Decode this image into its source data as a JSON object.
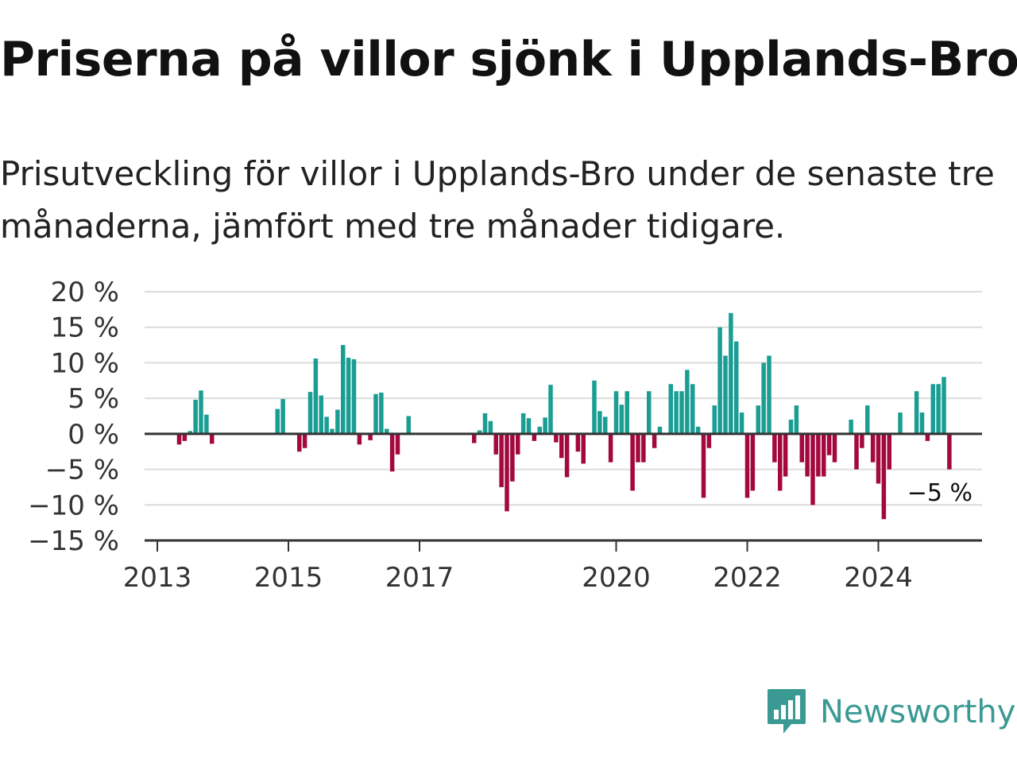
{
  "title": "Priserna på villor sjönk i Upplands-Bro",
  "subtitle": "Prisutveckling för villor i Upplands-Bro under de senaste tre månaderna, jämfört med tre månader tidigare.",
  "brand": {
    "name": "Newsworthy",
    "icon": "newsworthy-logo-icon",
    "color": "#3a9a93"
  },
  "chart_data": {
    "type": "bar",
    "y_ticks": [
      "20 %",
      "15 %",
      "10 %",
      "5 %",
      "0 %",
      "−5 %",
      "−10 %",
      "−15 %"
    ],
    "y_tick_values": [
      20,
      15,
      10,
      5,
      0,
      -5,
      -10,
      -15
    ],
    "ylim": [
      -15,
      20
    ],
    "x_ticks": [
      "2013",
      "2015",
      "2017",
      "2020",
      "2022",
      "2024"
    ],
    "x_tick_years": [
      2013,
      2015,
      2017,
      2020,
      2022,
      2024
    ],
    "grid": "horizontal",
    "colors": {
      "positive": "#1a9e94",
      "negative": "#a3093f",
      "grid": "#dcdcdc",
      "zero_line": "#333333"
    },
    "end_label": "−5 %",
    "series": [
      {
        "date": "2013-05",
        "value": -1.5
      },
      {
        "date": "2013-06",
        "value": -1
      },
      {
        "date": "2013-07",
        "value": 0.4
      },
      {
        "date": "2013-08",
        "value": 4.8
      },
      {
        "date": "2013-09",
        "value": 6.1
      },
      {
        "date": "2013-10",
        "value": 2.7
      },
      {
        "date": "2013-11",
        "value": -1.4
      },
      {
        "date": "2014-11",
        "value": 3.5
      },
      {
        "date": "2014-12",
        "value": 4.9
      },
      {
        "date": "2015-03",
        "value": -2.5
      },
      {
        "date": "2015-04",
        "value": -2
      },
      {
        "date": "2015-05",
        "value": 5.9
      },
      {
        "date": "2015-06",
        "value": 10.6
      },
      {
        "date": "2015-07",
        "value": 5.4
      },
      {
        "date": "2015-08",
        "value": 2.4
      },
      {
        "date": "2015-09",
        "value": 0.7
      },
      {
        "date": "2015-10",
        "value": 3.4
      },
      {
        "date": "2015-11",
        "value": 12.5
      },
      {
        "date": "2015-12",
        "value": 10.7
      },
      {
        "date": "2016-01",
        "value": 10.5
      },
      {
        "date": "2016-02",
        "value": -1.5
      },
      {
        "date": "2016-04",
        "value": -0.9
      },
      {
        "date": "2016-05",
        "value": 5.6
      },
      {
        "date": "2016-06",
        "value": 5.8
      },
      {
        "date": "2016-07",
        "value": 0.7
      },
      {
        "date": "2016-08",
        "value": -5.3
      },
      {
        "date": "2016-09",
        "value": -2.9
      },
      {
        "date": "2016-11",
        "value": 2.5
      },
      {
        "date": "2017-11",
        "value": -1.3
      },
      {
        "date": "2017-12",
        "value": 0.5
      },
      {
        "date": "2018-01",
        "value": 2.9
      },
      {
        "date": "2018-02",
        "value": 1.8
      },
      {
        "date": "2018-03",
        "value": -2.9
      },
      {
        "date": "2018-04",
        "value": -7.5
      },
      {
        "date": "2018-05",
        "value": -10.9
      },
      {
        "date": "2018-06",
        "value": -6.7
      },
      {
        "date": "2018-07",
        "value": -2.9
      },
      {
        "date": "2018-08",
        "value": 2.9
      },
      {
        "date": "2018-09",
        "value": 2.2
      },
      {
        "date": "2018-10",
        "value": -1
      },
      {
        "date": "2018-11",
        "value": 1
      },
      {
        "date": "2018-12",
        "value": 2.3
      },
      {
        "date": "2019-01",
        "value": 6.9
      },
      {
        "date": "2019-02",
        "value": -1.2
      },
      {
        "date": "2019-03",
        "value": -3.4
      },
      {
        "date": "2019-04",
        "value": -6.1
      },
      {
        "date": "2019-06",
        "value": -2.5
      },
      {
        "date": "2019-07",
        "value": -4.2
      },
      {
        "date": "2019-09",
        "value": 7.5
      },
      {
        "date": "2019-10",
        "value": 3.2
      },
      {
        "date": "2019-11",
        "value": 2.4
      },
      {
        "date": "2019-12",
        "value": -4
      },
      {
        "date": "2020-01",
        "value": 6
      },
      {
        "date": "2020-02",
        "value": 4.1
      },
      {
        "date": "2020-03",
        "value": 6
      },
      {
        "date": "2020-04",
        "value": -8
      },
      {
        "date": "2020-05",
        "value": -4
      },
      {
        "date": "2020-06",
        "value": -4
      },
      {
        "date": "2020-07",
        "value": 6
      },
      {
        "date": "2020-08",
        "value": -2
      },
      {
        "date": "2020-09",
        "value": 1
      },
      {
        "date": "2020-11",
        "value": 7
      },
      {
        "date": "2020-12",
        "value": 6
      },
      {
        "date": "2021-01",
        "value": 6
      },
      {
        "date": "2021-02",
        "value": 9
      },
      {
        "date": "2021-03",
        "value": 7
      },
      {
        "date": "2021-04",
        "value": 1
      },
      {
        "date": "2021-05",
        "value": -9
      },
      {
        "date": "2021-06",
        "value": -2
      },
      {
        "date": "2021-07",
        "value": 4
      },
      {
        "date": "2021-08",
        "value": 15
      },
      {
        "date": "2021-09",
        "value": 11
      },
      {
        "date": "2021-10",
        "value": 17
      },
      {
        "date": "2021-11",
        "value": 13
      },
      {
        "date": "2021-12",
        "value": 3
      },
      {
        "date": "2022-01",
        "value": -9
      },
      {
        "date": "2022-02",
        "value": -8
      },
      {
        "date": "2022-03",
        "value": 4
      },
      {
        "date": "2022-04",
        "value": 10
      },
      {
        "date": "2022-05",
        "value": 11
      },
      {
        "date": "2022-06",
        "value": -4
      },
      {
        "date": "2022-07",
        "value": -8
      },
      {
        "date": "2022-08",
        "value": -6
      },
      {
        "date": "2022-09",
        "value": 2
      },
      {
        "date": "2022-10",
        "value": 4
      },
      {
        "date": "2022-11",
        "value": -4
      },
      {
        "date": "2022-12",
        "value": -6
      },
      {
        "date": "2023-01",
        "value": -10
      },
      {
        "date": "2023-02",
        "value": -6
      },
      {
        "date": "2023-03",
        "value": -6
      },
      {
        "date": "2023-04",
        "value": -3
      },
      {
        "date": "2023-05",
        "value": -4
      },
      {
        "date": "2023-08",
        "value": 2
      },
      {
        "date": "2023-09",
        "value": -5
      },
      {
        "date": "2023-10",
        "value": -2
      },
      {
        "date": "2023-11",
        "value": 4
      },
      {
        "date": "2023-12",
        "value": -4
      },
      {
        "date": "2024-01",
        "value": -7
      },
      {
        "date": "2024-02",
        "value": -12
      },
      {
        "date": "2024-03",
        "value": -5
      },
      {
        "date": "2024-05",
        "value": 3
      },
      {
        "date": "2024-08",
        "value": 6
      },
      {
        "date": "2024-09",
        "value": 3
      },
      {
        "date": "2024-10",
        "value": -1
      },
      {
        "date": "2024-11",
        "value": 7
      },
      {
        "date": "2024-12",
        "value": 7
      },
      {
        "date": "2025-01",
        "value": 8
      },
      {
        "date": "2025-02",
        "value": -5
      }
    ]
  }
}
